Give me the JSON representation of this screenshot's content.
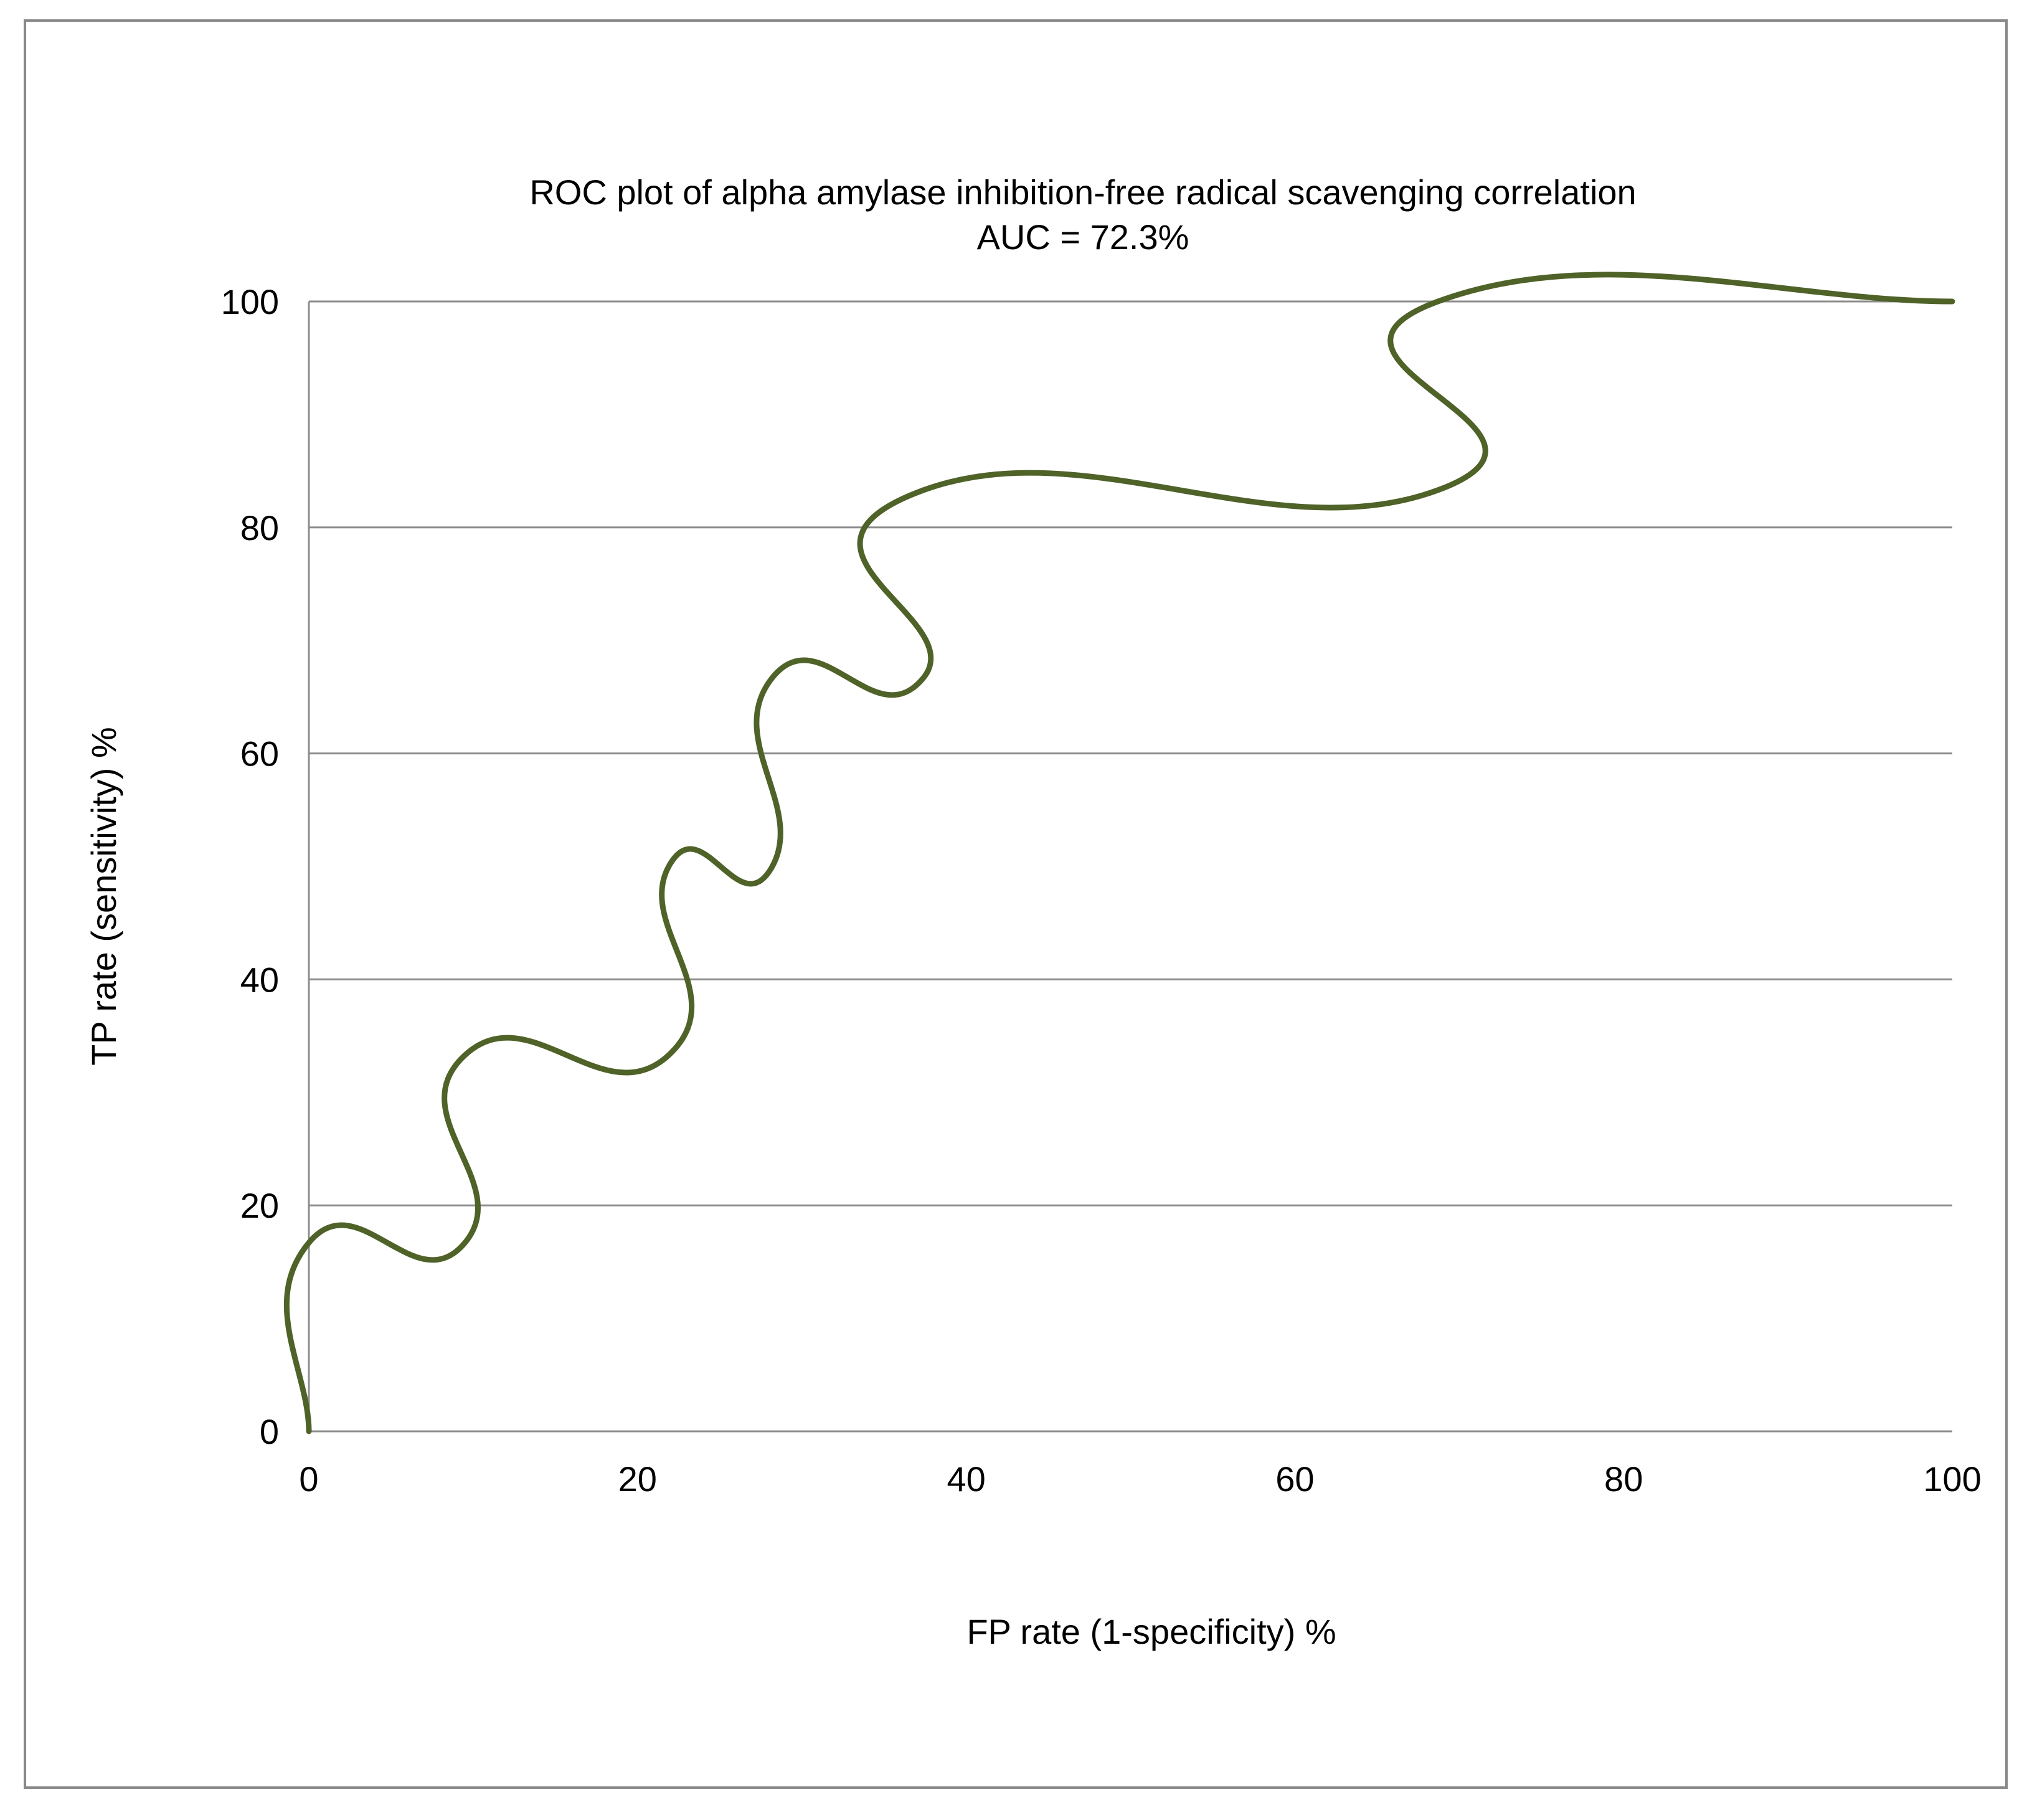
{
  "chart_data": {
    "type": "line",
    "title": "ROC plot of alpha amylase inhibition-free radical scavenging correlation",
    "subtitle": "AUC = 72.3%",
    "xlabel": "FP rate (1-specificity) %",
    "ylabel": "TP rate (sensitivity) %",
    "xlim": [
      0,
      100
    ],
    "ylim": [
      0,
      100
    ],
    "xticks": [
      0,
      20,
      40,
      60,
      80,
      100
    ],
    "yticks": [
      0,
      20,
      40,
      60,
      80,
      100
    ],
    "grid": "horizontal",
    "legend": "none",
    "line_color": "#4f6228",
    "series": [
      {
        "x": [
          0,
          0,
          9.5,
          9.5,
          21.9,
          21.9,
          28.2,
          28.2,
          37.4,
          37.4,
          68.7,
          68.7,
          100
        ],
        "y": [
          0,
          16.7,
          16.7,
          33.3,
          33.3,
          50,
          50,
          66.7,
          66.7,
          83.3,
          83.3,
          100,
          100
        ]
      }
    ]
  }
}
